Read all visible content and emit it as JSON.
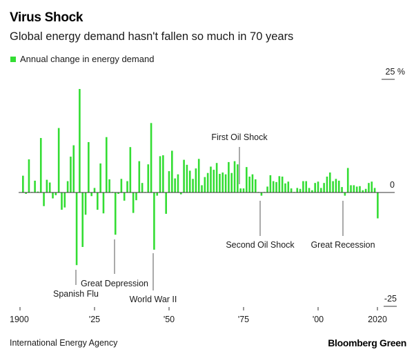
{
  "header": {
    "title": "Virus Shock",
    "subtitle": "Global energy demand hasn't fallen so much in 70 years"
  },
  "footer": {
    "source": "International Energy Agency",
    "brand": "Bloomberg Green"
  },
  "colors": {
    "bar": "#33dd33",
    "axis": "#333333",
    "leader": "#555555"
  },
  "chart_data": {
    "type": "bar",
    "title": "Virus Shock",
    "subtitle": "Global energy demand hasn't fallen so much in 70 years",
    "xlabel": "",
    "ylabel": "%",
    "ylim": [
      -25,
      25
    ],
    "xlim": [
      1900,
      2020
    ],
    "grid": false,
    "legend": {
      "position": "top-left",
      "entries": [
        "Annual change in energy demand"
      ]
    },
    "x_ticks": [
      {
        "year": 1900,
        "label": "1900"
      },
      {
        "year": 1925,
        "label": "'25"
      },
      {
        "year": 1950,
        "label": "'50"
      },
      {
        "year": 1975,
        "label": "'75"
      },
      {
        "year": 2000,
        "label": "'00"
      },
      {
        "year": 2020,
        "label": "2020"
      }
    ],
    "y_ticks": [
      {
        "value": 25,
        "label": "25 %"
      },
      {
        "value": 0,
        "label": "0"
      },
      {
        "value": -25,
        "label": "-25"
      }
    ],
    "series": [
      {
        "name": "Annual change in energy demand",
        "x": [
          1901,
          1902,
          1903,
          1904,
          1905,
          1906,
          1907,
          1908,
          1909,
          1910,
          1911,
          1912,
          1913,
          1914,
          1915,
          1916,
          1917,
          1918,
          1919,
          1920,
          1921,
          1922,
          1923,
          1924,
          1925,
          1926,
          1927,
          1928,
          1929,
          1930,
          1931,
          1932,
          1933,
          1934,
          1935,
          1936,
          1937,
          1938,
          1939,
          1940,
          1941,
          1942,
          1943,
          1944,
          1945,
          1946,
          1947,
          1948,
          1949,
          1950,
          1951,
          1952,
          1953,
          1954,
          1955,
          1956,
          1957,
          1958,
          1959,
          1960,
          1961,
          1962,
          1963,
          1964,
          1965,
          1966,
          1967,
          1968,
          1969,
          1970,
          1971,
          1972,
          1973,
          1974,
          1975,
          1976,
          1977,
          1978,
          1979,
          1980,
          1981,
          1982,
          1983,
          1984,
          1985,
          1986,
          1987,
          1988,
          1989,
          1990,
          1991,
          1992,
          1993,
          1994,
          1995,
          1996,
          1997,
          1998,
          1999,
          2000,
          2001,
          2002,
          2003,
          2004,
          2005,
          2006,
          2007,
          2008,
          2009,
          2010,
          2011,
          2012,
          2013,
          2014,
          2015,
          2016,
          2017,
          2018,
          2019,
          2020
        ],
        "values": [
          3.7,
          -0.3,
          7.3,
          0.0,
          2.6,
          0.2,
          12.0,
          -3.0,
          2.8,
          2.2,
          -1.3,
          -0.6,
          14.2,
          -3.8,
          -3.3,
          2.5,
          7.9,
          10.4,
          -16.0,
          22.8,
          -12.0,
          -4.9,
          11.1,
          -0.8,
          1.0,
          -3.8,
          6.4,
          -4.6,
          12.2,
          2.9,
          0.1,
          -9.3,
          -0.3,
          3.0,
          -1.8,
          2.5,
          10.0,
          -4.5,
          -1.7,
          6.9,
          2.1,
          0.1,
          6.2,
          15.3,
          -12.6,
          -0.7,
          8.0,
          8.2,
          -4.7,
          4.7,
          9.2,
          3.1,
          4.0,
          -0.4,
          7.2,
          6.1,
          4.8,
          3.0,
          5.3,
          7.4,
          1.6,
          3.4,
          4.3,
          5.7,
          5.0,
          6.5,
          4.1,
          4.4,
          4.0,
          6.7,
          4.3,
          6.9,
          6.2,
          0.9,
          0.9,
          5.6,
          3.5,
          4.0,
          2.9,
          0.1,
          -0.7,
          0.1,
          1.3,
          3.8,
          2.5,
          2.3,
          3.6,
          3.5,
          2.0,
          2.4,
          0.9,
          0.1,
          1.0,
          0.8,
          2.5,
          2.5,
          1.0,
          0.5,
          2.1,
          2.4,
          1.0,
          2.1,
          3.5,
          4.4,
          2.5,
          3.0,
          2.6,
          1.2,
          -0.7,
          5.4,
          1.6,
          1.6,
          1.3,
          1.4,
          0.5,
          0.8,
          2.1,
          2.4,
          1.0,
          -5.7
        ]
      }
    ],
    "annotations": [
      {
        "label": "Spanish Flu",
        "year": 1919,
        "side": "below"
      },
      {
        "label": "Great Depression",
        "year": 1932,
        "side": "below"
      },
      {
        "label": "World War II",
        "year": 1945,
        "side": "below"
      },
      {
        "label": "First Oil Shock",
        "year": 1974,
        "side": "above"
      },
      {
        "label": "Second Oil Shock",
        "year": 1981,
        "side": "below"
      },
      {
        "label": "Great Recession",
        "year": 2009,
        "side": "below"
      }
    ]
  }
}
